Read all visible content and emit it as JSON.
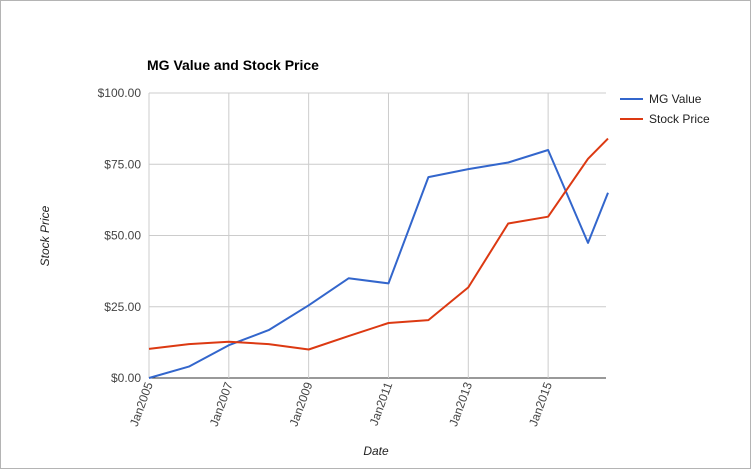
{
  "chart_data": {
    "type": "line",
    "title": "MG Value and Stock Price",
    "xlabel": "Date",
    "ylabel": "Stock Price",
    "x_tick_labels": [
      "Jan2005",
      "Jan2007",
      "Jan2009",
      "Jan2011",
      "Jan2013",
      "Jan2015"
    ],
    "y_tick_labels": [
      "$0.00",
      "$25.00",
      "$50.00",
      "$75.00",
      "$100.00"
    ],
    "ylim": [
      0,
      100
    ],
    "xlim": [
      2005.0,
      2016.45
    ],
    "grid": true,
    "legend_position": "right",
    "series": [
      {
        "name": "MG Value",
        "color": "#3366cc",
        "x": [
          2005.0,
          2006.0,
          2007.0,
          2008.0,
          2009.0,
          2010.0,
          2011.0,
          2012.0,
          2013.0,
          2014.0,
          2015.0,
          2016.0,
          2016.5
        ],
        "y": [
          0.0,
          4.0,
          11.5,
          16.8,
          25.5,
          35.0,
          33.2,
          70.5,
          73.3,
          75.6,
          80.0,
          47.4,
          65.0
        ]
      },
      {
        "name": "Stock Price",
        "color": "#dc3912",
        "x": [
          2005.0,
          2006.0,
          2007.0,
          2008.0,
          2009.0,
          2010.0,
          2011.0,
          2012.0,
          2013.0,
          2014.0,
          2015.0,
          2016.0,
          2016.5
        ],
        "y": [
          10.2,
          11.9,
          12.7,
          11.9,
          10.0,
          14.7,
          19.3,
          20.3,
          31.8,
          54.2,
          56.6,
          76.9,
          84.0
        ]
      }
    ]
  }
}
